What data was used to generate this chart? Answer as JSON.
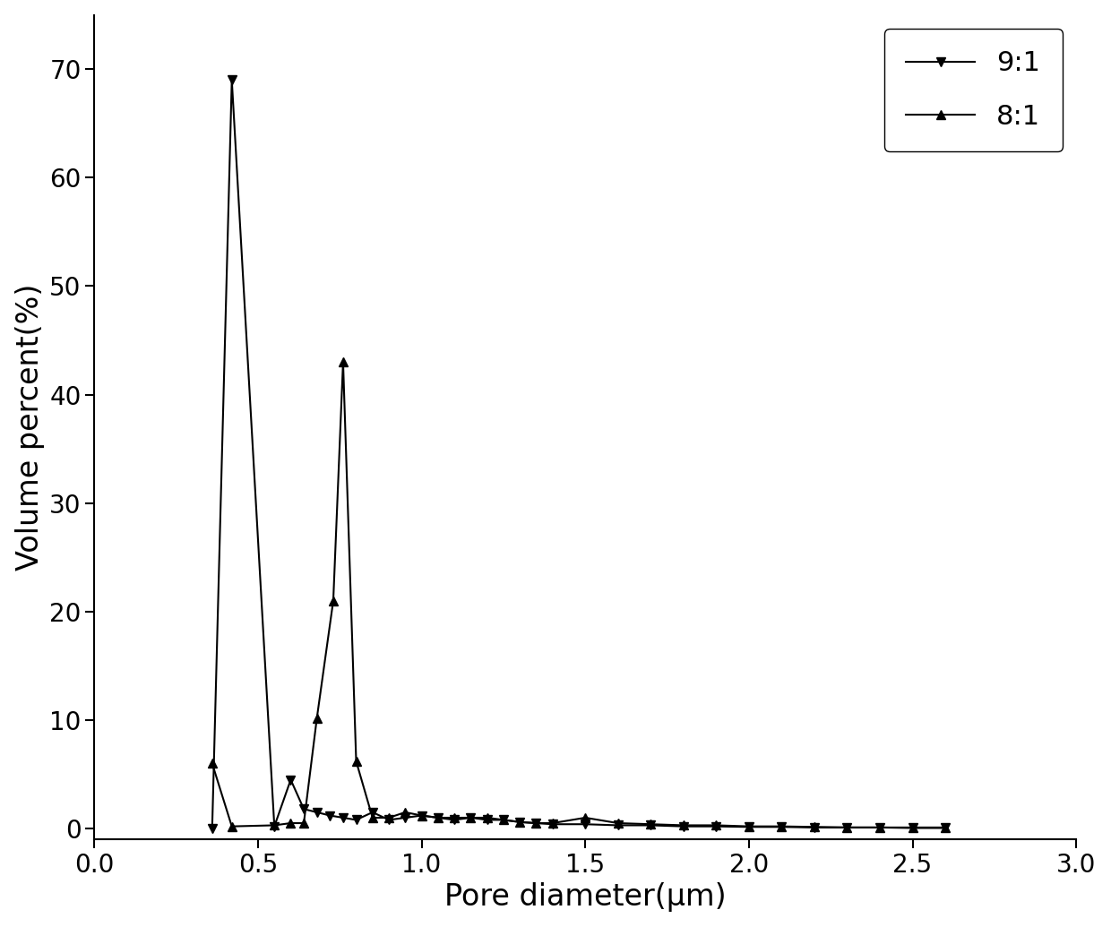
{
  "series_91": {
    "label": "9:1",
    "marker": "v",
    "x": [
      0.36,
      0.42,
      0.55,
      0.6,
      0.64,
      0.68,
      0.72,
      0.76,
      0.8,
      0.85,
      0.9,
      0.95,
      1.0,
      1.05,
      1.1,
      1.15,
      1.2,
      1.25,
      1.3,
      1.35,
      1.4,
      1.5,
      1.6,
      1.7,
      1.8,
      1.9,
      2.0,
      2.1,
      2.2,
      2.3,
      2.4,
      2.5,
      2.6
    ],
    "y": [
      0.0,
      69.0,
      0.2,
      4.5,
      1.8,
      1.5,
      1.2,
      1.0,
      0.8,
      1.5,
      0.8,
      1.0,
      1.2,
      1.0,
      0.8,
      1.0,
      0.8,
      0.8,
      0.6,
      0.5,
      0.4,
      0.4,
      0.3,
      0.3,
      0.2,
      0.2,
      0.15,
      0.15,
      0.1,
      0.1,
      0.1,
      0.05,
      0.05
    ]
  },
  "series_81": {
    "label": "8:1",
    "marker": "^",
    "x": [
      0.36,
      0.42,
      0.55,
      0.6,
      0.64,
      0.68,
      0.73,
      0.76,
      0.8,
      0.85,
      0.9,
      0.95,
      1.0,
      1.05,
      1.1,
      1.15,
      1.2,
      1.25,
      1.3,
      1.35,
      1.4,
      1.5,
      1.6,
      1.7,
      1.8,
      1.9,
      2.0,
      2.1,
      2.2,
      2.3,
      2.4,
      2.5,
      2.6
    ],
    "y": [
      6.0,
      0.2,
      0.3,
      0.5,
      0.5,
      10.2,
      21.0,
      43.0,
      6.2,
      1.0,
      1.0,
      1.5,
      1.2,
      1.0,
      1.0,
      1.0,
      1.0,
      0.8,
      0.6,
      0.5,
      0.5,
      1.0,
      0.5,
      0.4,
      0.3,
      0.3,
      0.2,
      0.2,
      0.15,
      0.1,
      0.1,
      0.1,
      0.1
    ]
  },
  "xlim": [
    0.0,
    3.0
  ],
  "ylim": [
    -1,
    75
  ],
  "yticks": [
    0,
    10,
    20,
    30,
    40,
    50,
    60,
    70
  ],
  "xticks": [
    0.0,
    0.5,
    1.0,
    1.5,
    2.0,
    2.5,
    3.0
  ],
  "xlabel": "Pore diameter(μm)",
  "ylabel": "Volume percent(%)",
  "line_color": "#000000",
  "background_color": "#ffffff",
  "markersize": 7,
  "linewidth": 1.5,
  "legend_fontsize": 22,
  "axis_label_fontsize": 24,
  "tick_fontsize": 20
}
